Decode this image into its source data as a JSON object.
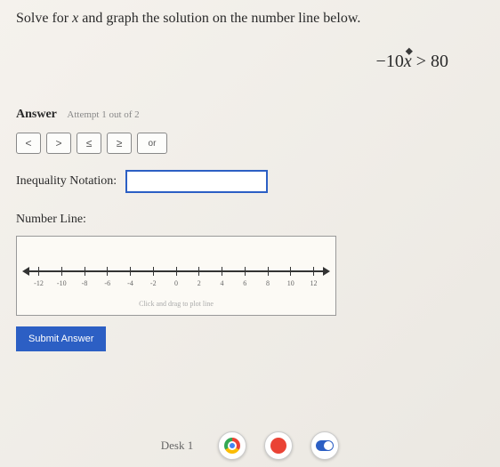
{
  "question": {
    "prefix": "Solve for ",
    "variable": "x",
    "suffix": " and graph the solution on the number line below."
  },
  "inequality": {
    "lhs_coeff": "−10",
    "variable": "x",
    "operator": ">",
    "rhs": "80"
  },
  "answer_section": {
    "label": "Answer",
    "attempt": "Attempt 1 out of 2"
  },
  "symbol_buttons": {
    "lt": "<",
    "gt": ">",
    "le": "≤",
    "ge": "≥",
    "or": "or"
  },
  "notation": {
    "label": "Inequality Notation:",
    "value": ""
  },
  "number_line": {
    "label": "Number Line:",
    "ticks": [
      "-12",
      "-10",
      "-8",
      "-6",
      "-4",
      "-2",
      "0",
      "2",
      "4",
      "6",
      "8",
      "10",
      "12"
    ],
    "hint": "Click and drag to plot line",
    "axis_color": "#333333",
    "box_border": "#999999",
    "box_bg": "#fcfaf5"
  },
  "submit": {
    "label": "Submit Answer",
    "bg": "#2c5fc4",
    "fg": "#ffffff"
  },
  "taskbar": {
    "label": "Desk 1"
  },
  "colors": {
    "page_bg": "#f0ede8",
    "text": "#2a2a2a",
    "input_border": "#2c5fc4"
  }
}
